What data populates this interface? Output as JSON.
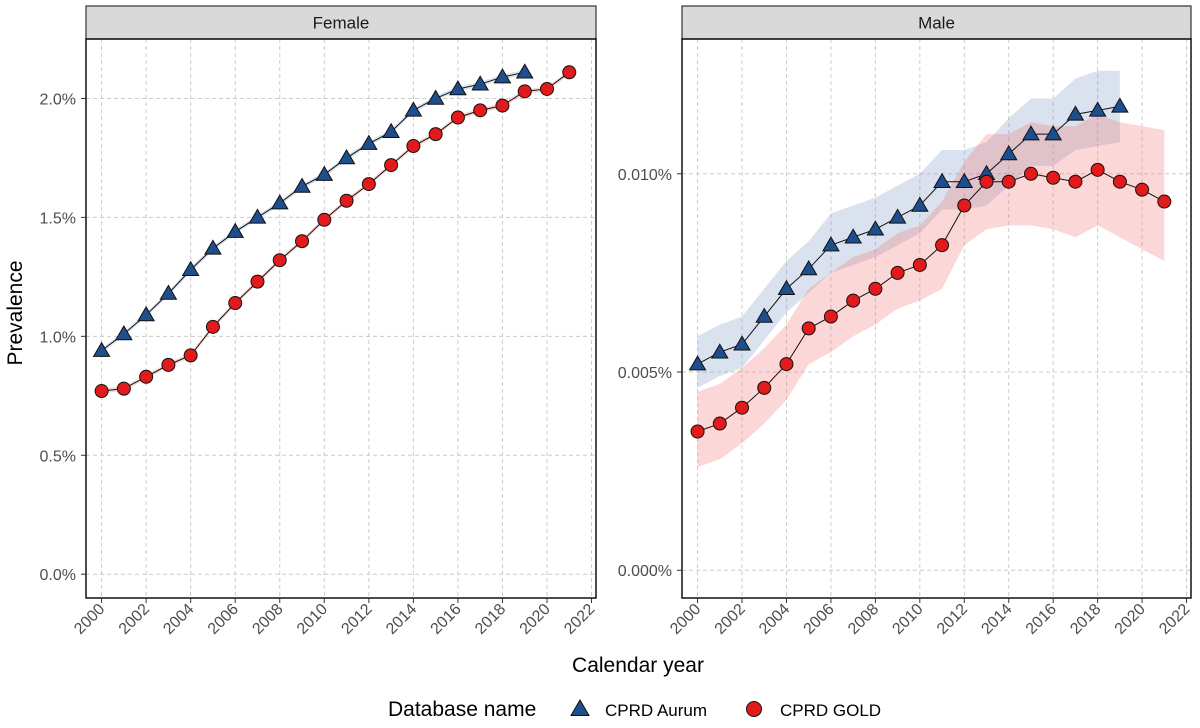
{
  "chart_data": {
    "type": "line",
    "xlabel": "Calendar year",
    "ylabel": "Prevalence",
    "x_ticks": [
      "2000",
      "2002",
      "2004",
      "2006",
      "2008",
      "2010",
      "2012",
      "2014",
      "2016",
      "2018",
      "2020",
      "2022"
    ],
    "x_range": [
      1999.3,
      2022.2
    ],
    "legend": {
      "title": "Database name",
      "position": "bottom",
      "entries": [
        {
          "name": "CPRD Aurum",
          "marker": "triangle",
          "color": "#1f4e8c"
        },
        {
          "name": "CPRD GOLD",
          "marker": "circle",
          "color": "#e31a1c"
        }
      ]
    },
    "panels": [
      {
        "title": "Female",
        "ylim": [
          -0.1,
          2.25
        ],
        "y_ticks": [
          0,
          0.5,
          1.0,
          1.5,
          2.0
        ],
        "y_tick_labels": [
          "0.0%",
          "0.5%",
          "1.0%",
          "1.5%",
          "2.0%"
        ],
        "series": [
          {
            "name": "CPRD Aurum",
            "x": [
              2000,
              2001,
              2002,
              2003,
              2004,
              2005,
              2006,
              2007,
              2008,
              2009,
              2010,
              2011,
              2012,
              2013,
              2014,
              2015,
              2016,
              2017,
              2018,
              2019
            ],
            "values": [
              0.94,
              1.01,
              1.09,
              1.18,
              1.28,
              1.37,
              1.44,
              1.5,
              1.56,
              1.63,
              1.68,
              1.75,
              1.81,
              1.86,
              1.95,
              2.0,
              2.04,
              2.06,
              2.09,
              2.11
            ],
            "lower": [
              0.93,
              1.0,
              1.08,
              1.17,
              1.27,
              1.36,
              1.43,
              1.49,
              1.55,
              1.62,
              1.67,
              1.74,
              1.8,
              1.85,
              1.94,
              1.99,
              2.03,
              2.05,
              2.08,
              2.1
            ],
            "upper": [
              0.95,
              1.02,
              1.1,
              1.19,
              1.29,
              1.38,
              1.45,
              1.51,
              1.57,
              1.64,
              1.69,
              1.76,
              1.82,
              1.87,
              1.96,
              2.01,
              2.05,
              2.07,
              2.1,
              2.12
            ]
          },
          {
            "name": "CPRD GOLD",
            "x": [
              2000,
              2001,
              2002,
              2003,
              2004,
              2005,
              2006,
              2007,
              2008,
              2009,
              2010,
              2011,
              2012,
              2013,
              2014,
              2015,
              2016,
              2017,
              2018,
              2019,
              2020,
              2021
            ],
            "values": [
              0.77,
              0.78,
              0.83,
              0.88,
              0.92,
              1.04,
              1.14,
              1.23,
              1.32,
              1.4,
              1.49,
              1.57,
              1.64,
              1.72,
              1.8,
              1.85,
              1.92,
              1.95,
              1.97,
              2.03,
              2.04,
              2.11
            ],
            "lower": [
              0.76,
              0.77,
              0.82,
              0.87,
              0.91,
              1.03,
              1.13,
              1.22,
              1.31,
              1.39,
              1.48,
              1.56,
              1.63,
              1.71,
              1.79,
              1.84,
              1.91,
              1.94,
              1.96,
              2.02,
              2.03,
              2.1
            ],
            "upper": [
              0.78,
              0.79,
              0.84,
              0.89,
              0.93,
              1.05,
              1.15,
              1.24,
              1.33,
              1.41,
              1.5,
              1.58,
              1.65,
              1.73,
              1.81,
              1.86,
              1.93,
              1.96,
              1.98,
              2.04,
              2.05,
              2.12
            ]
          }
        ]
      },
      {
        "title": "Male",
        "ylim": [
          -0.0007,
          0.0134
        ],
        "y_ticks": [
          0,
          0.005,
          0.01
        ],
        "y_tick_labels": [
          "0.000%",
          "0.005%",
          "0.010%"
        ],
        "series": [
          {
            "name": "CPRD Aurum",
            "x": [
              2000,
              2001,
              2002,
              2003,
              2004,
              2005,
              2006,
              2007,
              2008,
              2009,
              2010,
              2011,
              2012,
              2013,
              2014,
              2015,
              2016,
              2017,
              2018,
              2019
            ],
            "values": [
              0.0052,
              0.0055,
              0.0057,
              0.0064,
              0.0071,
              0.0076,
              0.0082,
              0.0084,
              0.0086,
              0.0089,
              0.0092,
              0.0098,
              0.0098,
              0.01,
              0.0105,
              0.011,
              0.011,
              0.0115,
              0.0116,
              0.0117
            ],
            "lower": [
              0.0046,
              0.0049,
              0.0051,
              0.0058,
              0.0065,
              0.007,
              0.0075,
              0.0077,
              0.0079,
              0.0082,
              0.0085,
              0.0091,
              0.0091,
              0.0092,
              0.0097,
              0.0102,
              0.0102,
              0.0106,
              0.0107,
              0.0108
            ],
            "upper": [
              0.0059,
              0.0062,
              0.0064,
              0.0071,
              0.0078,
              0.0083,
              0.009,
              0.0092,
              0.0094,
              0.0097,
              0.01,
              0.0106,
              0.0106,
              0.0108,
              0.0114,
              0.0119,
              0.0119,
              0.0124,
              0.0126,
              0.0126
            ]
          },
          {
            "name": "CPRD GOLD",
            "x": [
              2000,
              2001,
              2002,
              2003,
              2004,
              2005,
              2006,
              2007,
              2008,
              2009,
              2010,
              2011,
              2012,
              2013,
              2014,
              2015,
              2016,
              2017,
              2018,
              2019,
              2020,
              2021
            ],
            "values": [
              0.0035,
              0.0037,
              0.0041,
              0.0046,
              0.0052,
              0.0061,
              0.0064,
              0.0068,
              0.0071,
              0.0075,
              0.0077,
              0.0082,
              0.0092,
              0.0098,
              0.0098,
              0.01,
              0.0099,
              0.0098,
              0.0101,
              0.0098,
              0.0096,
              0.0093
            ],
            "lower": [
              0.0026,
              0.0028,
              0.0032,
              0.0037,
              0.0043,
              0.0052,
              0.0055,
              0.0059,
              0.0062,
              0.0066,
              0.0068,
              0.0071,
              0.0082,
              0.0086,
              0.0087,
              0.0087,
              0.0086,
              0.0084,
              0.0087,
              0.0084,
              0.0081,
              0.0078
            ],
            "upper": [
              0.0045,
              0.0047,
              0.0051,
              0.0056,
              0.0062,
              0.0071,
              0.0075,
              0.0079,
              0.0081,
              0.0085,
              0.0087,
              0.0093,
              0.0103,
              0.011,
              0.011,
              0.0113,
              0.0112,
              0.0112,
              0.0115,
              0.0113,
              0.0112,
              0.0111
            ]
          }
        ]
      }
    ]
  }
}
